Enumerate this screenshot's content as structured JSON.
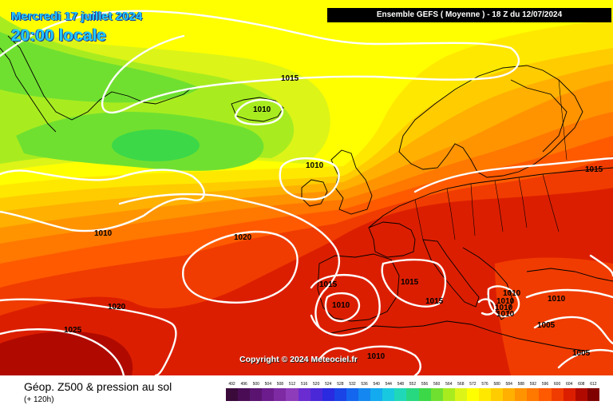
{
  "header": {
    "date": "Mercredi 17 juillet 2024",
    "local_time": "20:00 locale",
    "run_info": "Ensemble GEFS  ( Moyenne )  -  18 Z du 12/07/2024"
  },
  "map": {
    "isobar_labels": [
      {
        "text": "1015"
      },
      {
        "text": "1010"
      },
      {
        "text": "1010"
      },
      {
        "text": "1010"
      },
      {
        "text": "1020"
      },
      {
        "text": "1015"
      },
      {
        "text": "1015"
      },
      {
        "text": "1015"
      },
      {
        "text": "1010"
      },
      {
        "text": "1020"
      },
      {
        "text": "1025"
      },
      {
        "text": "1015"
      },
      {
        "text": "1010"
      },
      {
        "text": "1010"
      },
      {
        "text": "1010"
      },
      {
        "text": "1010"
      },
      {
        "text": "1010"
      },
      {
        "text": "1005"
      },
      {
        "text": "1005"
      },
      {
        "text": "1010"
      }
    ],
    "copyright": "Copyright © 2024 Meteociel.fr",
    "colors": {
      "isobar": "#ffffff",
      "coast": "#000000"
    }
  },
  "legend": {
    "title": "Géop. Z500 & pression au sol",
    "subtitle": "(+ 120h)",
    "scale": [
      {
        "label": "492",
        "color": "#3a0a3a"
      },
      {
        "label": "496",
        "color": "#4a0d55"
      },
      {
        "label": "500",
        "color": "#5a1470"
      },
      {
        "label": "504",
        "color": "#6c1c8c"
      },
      {
        "label": "508",
        "color": "#7d2aa3"
      },
      {
        "label": "512",
        "color": "#8e3cba"
      },
      {
        "label": "516",
        "color": "#6a2cd0"
      },
      {
        "label": "520",
        "color": "#4a28d8"
      },
      {
        "label": "524",
        "color": "#2a2ae0"
      },
      {
        "label": "528",
        "color": "#1a44e6"
      },
      {
        "label": "532",
        "color": "#1466ee"
      },
      {
        "label": "536",
        "color": "#1488f0"
      },
      {
        "label": "540",
        "color": "#14aaf0"
      },
      {
        "label": "544",
        "color": "#18c8e0"
      },
      {
        "label": "548",
        "color": "#20d8b8"
      },
      {
        "label": "552",
        "color": "#28d880"
      },
      {
        "label": "556",
        "color": "#3cd848"
      },
      {
        "label": "560",
        "color": "#70e030"
      },
      {
        "label": "564",
        "color": "#a8ec20"
      },
      {
        "label": "568",
        "color": "#dcf418"
      },
      {
        "label": "572",
        "color": "#ffff00"
      },
      {
        "label": "576",
        "color": "#ffe800"
      },
      {
        "label": "580",
        "color": "#ffcc00"
      },
      {
        "label": "584",
        "color": "#ffb000"
      },
      {
        "label": "588",
        "color": "#ff9400"
      },
      {
        "label": "592",
        "color": "#ff7800"
      },
      {
        "label": "596",
        "color": "#ff5a00"
      },
      {
        "label": "600",
        "color": "#f03c00"
      },
      {
        "label": "604",
        "color": "#dc1e00"
      },
      {
        "label": "608",
        "color": "#b00a00"
      },
      {
        "label": "612",
        "color": "#800000"
      }
    ]
  }
}
